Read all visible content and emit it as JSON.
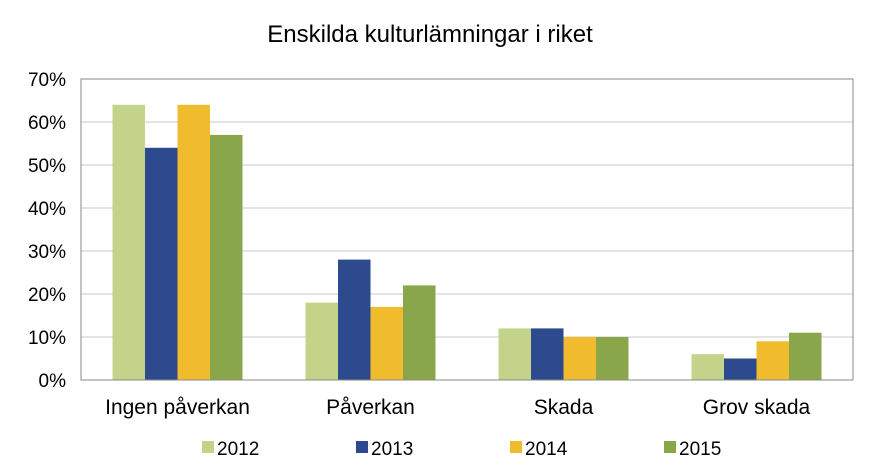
{
  "chart_data": {
    "type": "bar",
    "title": "Enskilda kulturlämningar i riket",
    "categories": [
      "Ingen påverkan",
      "Påverkan",
      "Skada",
      "Grov skada"
    ],
    "series": [
      {
        "name": "2012",
        "color": "#c3d48a",
        "values": [
          64,
          18,
          12,
          6
        ]
      },
      {
        "name": "2013",
        "color": "#2e4a8e",
        "values": [
          54,
          28,
          12,
          5
        ]
      },
      {
        "name": "2014",
        "color": "#f0bb2c",
        "values": [
          64,
          17,
          10,
          9
        ]
      },
      {
        "name": "2015",
        "color": "#8aa64a",
        "values": [
          57,
          22,
          10,
          11
        ]
      }
    ],
    "yticks": [
      "0%",
      "10%",
      "20%",
      "30%",
      "40%",
      "50%",
      "60%",
      "70%"
    ],
    "ylim": [
      0,
      70
    ],
    "xlabel": "",
    "ylabel": "",
    "grid": true,
    "legend": "bottom"
  }
}
